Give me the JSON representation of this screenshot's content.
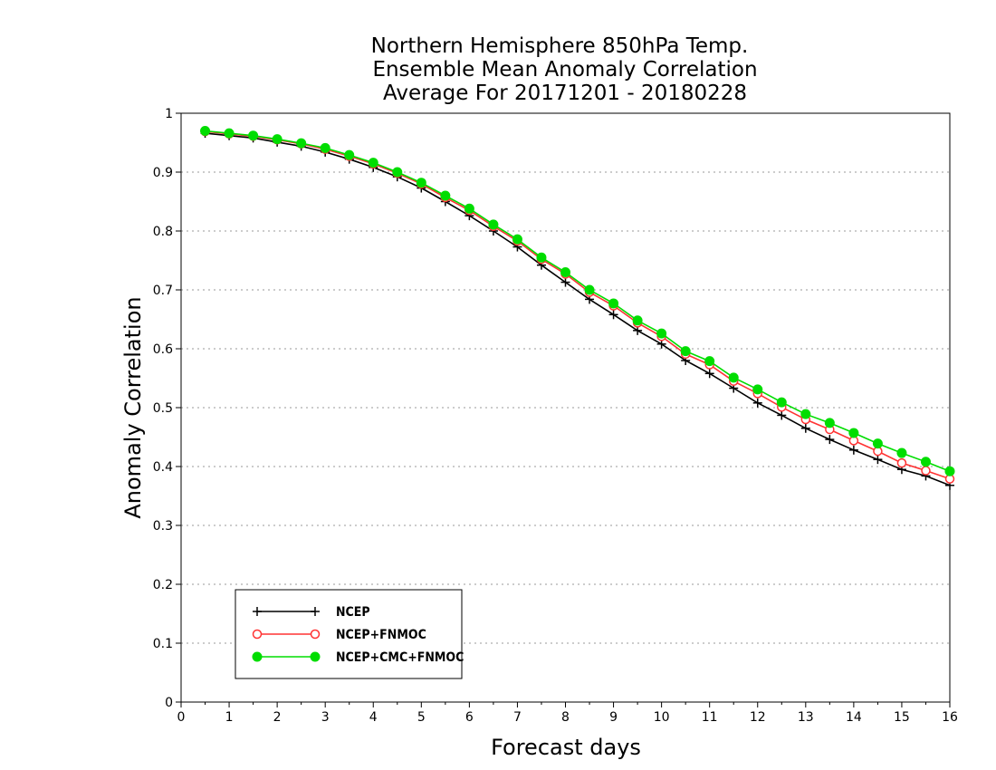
{
  "chart_data": {
    "type": "line",
    "title_lines": [
      "Northern Hemisphere 850hPa Temp.",
      "Ensemble Mean Anomaly Correlation",
      "Average For 20171201 - 20180228"
    ],
    "xlabel": "Forecast days",
    "ylabel": "Anomaly Correlation",
    "xlim": [
      0,
      16
    ],
    "ylim": [
      0,
      1
    ],
    "x_ticks": [
      "0",
      "1",
      "2",
      "3",
      "4",
      "5",
      "6",
      "7",
      "8",
      "9",
      "10",
      "11",
      "12",
      "13",
      "14",
      "15",
      "16"
    ],
    "y_ticks": [
      "0",
      "0.1",
      "0.2",
      "0.3",
      "0.4",
      "0.5",
      "0.6",
      "0.7",
      "0.8",
      "0.9",
      "1"
    ],
    "grid": "horizontal dotted",
    "legend_position": "bottom-left",
    "x": [
      0.5,
      1,
      1.5,
      2,
      2.5,
      3,
      3.5,
      4,
      4.5,
      5,
      5.5,
      6,
      6.5,
      7,
      7.5,
      8,
      8.5,
      9,
      9.5,
      10,
      10.5,
      11,
      11.5,
      12,
      12.5,
      13,
      13.5,
      14,
      14.5,
      15,
      15.5,
      16
    ],
    "series": [
      {
        "name": "NCEP",
        "color": "#000000",
        "marker": "plus",
        "values": [
          0.966,
          0.962,
          0.958,
          0.951,
          0.944,
          0.934,
          0.922,
          0.908,
          0.892,
          0.873,
          0.85,
          0.826,
          0.8,
          0.773,
          0.742,
          0.713,
          0.684,
          0.658,
          0.631,
          0.608,
          0.58,
          0.558,
          0.533,
          0.508,
          0.487,
          0.465,
          0.446,
          0.428,
          0.412,
          0.395,
          0.384,
          0.368
        ]
      },
      {
        "name": "NCEP+FNMOC",
        "color": "#ff3333",
        "marker": "open-circle",
        "values": [
          0.969,
          0.965,
          0.961,
          0.955,
          0.948,
          0.939,
          0.927,
          0.914,
          0.898,
          0.88,
          0.857,
          0.835,
          0.808,
          0.783,
          0.752,
          0.727,
          0.696,
          0.673,
          0.644,
          0.621,
          0.591,
          0.573,
          0.545,
          0.524,
          0.501,
          0.48,
          0.463,
          0.444,
          0.426,
          0.406,
          0.393,
          0.379
        ]
      },
      {
        "name": "NCEP+CMC+FNMOC",
        "color": "#00dd00",
        "marker": "filled-circle",
        "values": [
          0.97,
          0.966,
          0.962,
          0.956,
          0.949,
          0.941,
          0.929,
          0.916,
          0.9,
          0.882,
          0.86,
          0.838,
          0.811,
          0.786,
          0.755,
          0.73,
          0.7,
          0.677,
          0.648,
          0.626,
          0.596,
          0.579,
          0.551,
          0.531,
          0.509,
          0.489,
          0.474,
          0.457,
          0.439,
          0.423,
          0.408,
          0.392
        ]
      }
    ]
  }
}
